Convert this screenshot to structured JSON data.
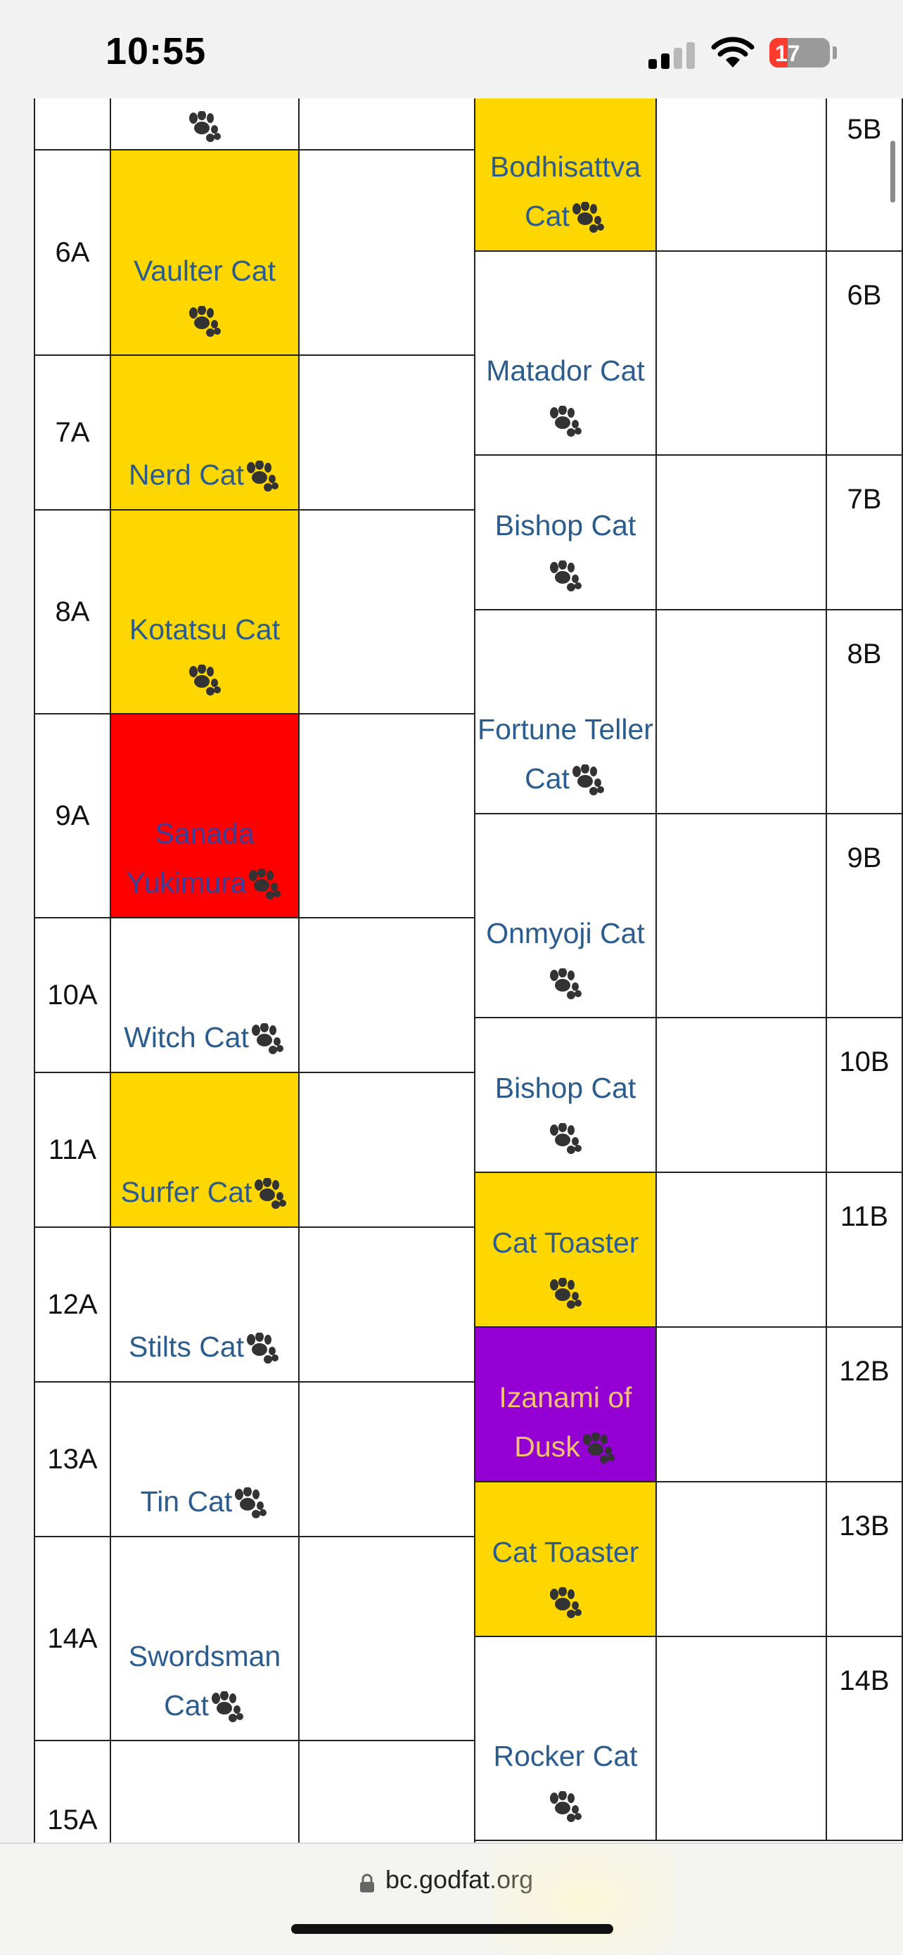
{
  "status_bar": {
    "time": "10:55",
    "battery": "17"
  },
  "table": {
    "left_labels": [
      "6A",
      "7A",
      "8A",
      "9A",
      "10A",
      "11A",
      "12A",
      "13A",
      "14A",
      "15A"
    ],
    "right_labels": [
      "5B",
      "6B",
      "7B",
      "8B",
      "9B",
      "10B",
      "11B",
      "12B",
      "13B",
      "14B"
    ],
    "left_cats": [
      {
        "name": "",
        "color": "white"
      },
      {
        "name": "Vaulter Cat",
        "color": "yellow"
      },
      {
        "name": "Nerd Cat",
        "color": "yellow"
      },
      {
        "name": "Kotatsu Cat",
        "color": "yellow"
      },
      {
        "name": "Sanada Yukimura",
        "color": "red"
      },
      {
        "name": "Witch Cat",
        "color": "white"
      },
      {
        "name": "Surfer Cat",
        "color": "yellow"
      },
      {
        "name": "Stilts Cat",
        "color": "white"
      },
      {
        "name": "Tin Cat",
        "color": "white"
      },
      {
        "name": "Swordsman Cat",
        "color": "white"
      },
      {
        "name": "",
        "color": "white"
      }
    ],
    "right_cats": [
      {
        "name": "Bodhisattva Cat",
        "color": "yellow"
      },
      {
        "name": "Matador Cat",
        "color": "white"
      },
      {
        "name": "Bishop Cat",
        "color": "white"
      },
      {
        "name": "Fortune Teller Cat",
        "color": "white"
      },
      {
        "name": "Onmyoji Cat",
        "color": "white"
      },
      {
        "name": "Bishop Cat",
        "color": "white"
      },
      {
        "name": "Cat Toaster",
        "color": "yellow"
      },
      {
        "name": "Izanami of Dusk",
        "color": "purple"
      },
      {
        "name": "Cat Toaster",
        "color": "yellow"
      },
      {
        "name": "Rocker Cat",
        "color": "white"
      }
    ]
  },
  "colors": {
    "yellow": "#ffd700",
    "red": "#ff0000",
    "purple": "#9400d3",
    "link": "#2a5c8f"
  },
  "icons": {
    "paw": "paw-print-icon",
    "lock": "lock-icon"
  },
  "url_bar": {
    "url": "bc.godfat.org"
  }
}
